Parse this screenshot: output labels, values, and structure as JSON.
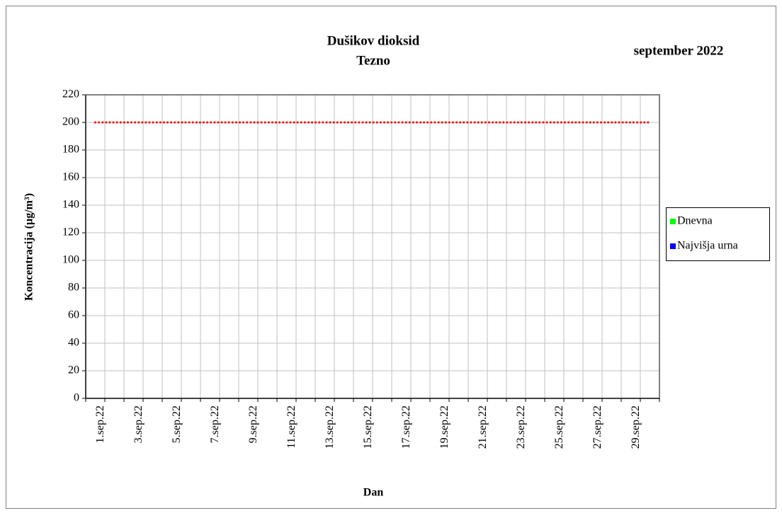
{
  "chart_data": {
    "type": "line",
    "title": "Dušikov dioksid",
    "subtitle": "Tezno",
    "period": "september 2022",
    "y_label": "Koncentracija  (µg/m³)",
    "x_label": "Dan",
    "categories": [
      "1.sep.22",
      null,
      "3.sep.22",
      null,
      "5.sep.22",
      null,
      "7.sep.22",
      null,
      "9.sep.22",
      null,
      "11.sep.22",
      null,
      "13.sep.22",
      null,
      "15.sep.22",
      null,
      "17.sep.22",
      null,
      "19.sep.22",
      null,
      "21.sep.22",
      null,
      "23.sep.22",
      null,
      "25.sep.22",
      null,
      "27.sep.22",
      null,
      "29.sep.22",
      null
    ],
    "series": [
      {
        "name": "Dnevna",
        "color": "#00ff00",
        "values": [
          null,
          null,
          null,
          null,
          null,
          null,
          null,
          null,
          null,
          null,
          null,
          null,
          null,
          null,
          null,
          null,
          null,
          null,
          null,
          null,
          null,
          null,
          null,
          null,
          null,
          null,
          null,
          null,
          null,
          null
        ]
      },
      {
        "name": "Najvišja urna",
        "color": "#0000ff",
        "values": [
          null,
          null,
          null,
          null,
          null,
          null,
          null,
          null,
          null,
          null,
          null,
          null,
          null,
          null,
          null,
          null,
          null,
          null,
          null,
          null,
          null,
          null,
          null,
          null,
          null,
          null,
          null,
          null,
          null,
          null
        ]
      },
      {
        "color": "#ff0000",
        "dotted": true,
        "values": [
          200,
          200,
          200,
          200,
          200,
          200,
          200,
          200,
          200,
          200,
          200,
          200,
          200,
          200,
          200,
          200,
          200,
          200,
          200,
          200,
          200,
          200,
          200,
          200,
          200,
          200,
          200,
          200,
          200,
          200
        ]
      }
    ],
    "ylim": [
      0,
      220
    ],
    "yticks": [
      0,
      20,
      40,
      60,
      80,
      100,
      120,
      140,
      160,
      180,
      200,
      220
    ],
    "grid": true,
    "legend": "right"
  }
}
